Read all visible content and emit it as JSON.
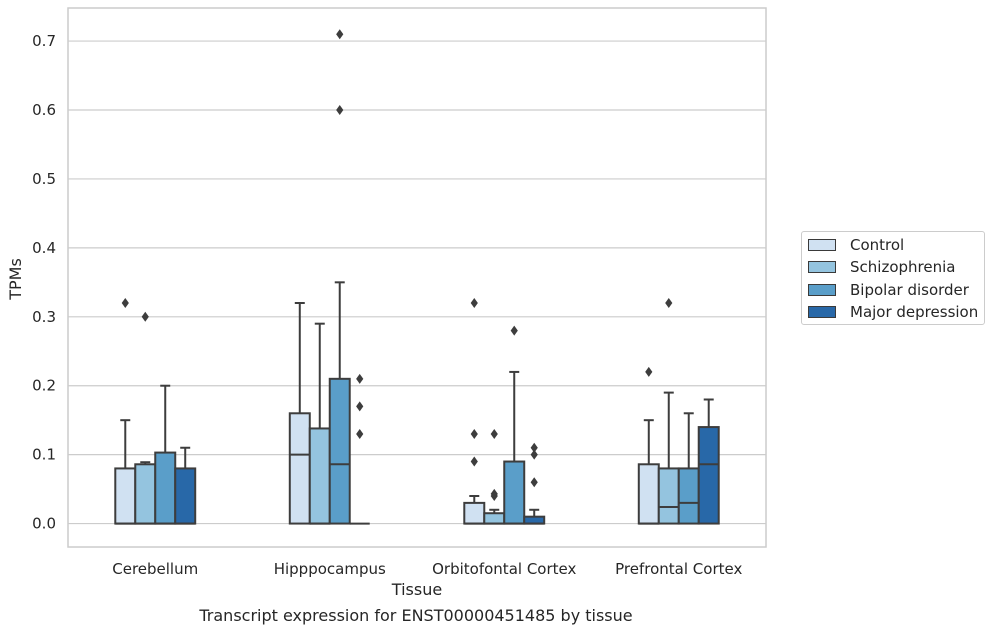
{
  "caption": "Transcript expression for ENST00000451485 by tissue",
  "chart_data": {
    "type": "box",
    "xlabel": "Tissue",
    "ylabel": "TPMs",
    "ylim": [
      -0.034,
      0.748
    ],
    "yticks": [
      0.0,
      0.1,
      0.2,
      0.3,
      0.4,
      0.5,
      0.6,
      0.7
    ],
    "ytick_labels": [
      "0.0",
      "0.1",
      "0.2",
      "0.3",
      "0.4",
      "0.5",
      "0.6",
      "0.7"
    ],
    "grid": "horizontal",
    "legend_position": "right",
    "categories": [
      "Cerebellum",
      "Hipppocampus",
      "Orbitofontal Cortex",
      "Prefrontal Cortex"
    ],
    "series": [
      {
        "name": "Control",
        "color": "#d0e1f2",
        "boxes": [
          {
            "q1": 0.0,
            "median": 0.0,
            "q3": 0.08,
            "whisker_low": 0.0,
            "whisker_high": 0.15,
            "outliers": [
              0.32
            ]
          },
          {
            "q1": 0.0,
            "median": 0.1,
            "q3": 0.16,
            "whisker_low": 0.0,
            "whisker_high": 0.32,
            "outliers": []
          },
          {
            "q1": 0.0,
            "median": 0.0,
            "q3": 0.03,
            "whisker_low": 0.0,
            "whisker_high": 0.04,
            "outliers": [
              0.32,
              0.13,
              0.09
            ]
          },
          {
            "q1": 0.0,
            "median": 0.0,
            "q3": 0.086,
            "whisker_low": 0.0,
            "whisker_high": 0.15,
            "outliers": [
              0.22
            ]
          }
        ]
      },
      {
        "name": "Schizophrenia",
        "color": "#94c4df",
        "boxes": [
          {
            "q1": 0.0,
            "median": 0.0,
            "q3": 0.086,
            "whisker_low": 0.0,
            "whisker_high": 0.089,
            "outliers": [
              0.3
            ]
          },
          {
            "q1": 0.0,
            "median": 0.0,
            "q3": 0.138,
            "whisker_low": 0.0,
            "whisker_high": 0.29,
            "outliers": []
          },
          {
            "q1": 0.0,
            "median": 0.0,
            "q3": 0.015,
            "whisker_low": 0.0,
            "whisker_high": 0.02,
            "outliers": [
              0.13,
              0.043,
              0.04
            ]
          },
          {
            "q1": 0.0,
            "median": 0.024,
            "q3": 0.08,
            "whisker_low": 0.0,
            "whisker_high": 0.19,
            "outliers": [
              0.32
            ]
          }
        ]
      },
      {
        "name": "Bipolar disorder",
        "color": "#5a9ec9",
        "boxes": [
          {
            "q1": 0.0,
            "median": 0.0,
            "q3": 0.103,
            "whisker_low": 0.0,
            "whisker_high": 0.2,
            "outliers": []
          },
          {
            "q1": 0.0,
            "median": 0.086,
            "q3": 0.21,
            "whisker_low": 0.0,
            "whisker_high": 0.35,
            "outliers": [
              0.71,
              0.6
            ]
          },
          {
            "q1": 0.0,
            "median": 0.0,
            "q3": 0.09,
            "whisker_low": 0.0,
            "whisker_high": 0.22,
            "outliers": [
              0.28
            ]
          },
          {
            "q1": 0.0,
            "median": 0.03,
            "q3": 0.08,
            "whisker_low": 0.0,
            "whisker_high": 0.16,
            "outliers": []
          }
        ]
      },
      {
        "name": "Major depression",
        "color": "#2868a8",
        "boxes": [
          {
            "q1": 0.0,
            "median": 0.0,
            "q3": 0.08,
            "whisker_low": 0.0,
            "whisker_high": 0.11,
            "outliers": []
          },
          {
            "q1": 0.0,
            "median": 0.0,
            "q3": 0.0,
            "whisker_low": 0.0,
            "whisker_high": 0.0,
            "outliers": [
              0.21,
              0.17,
              0.13
            ]
          },
          {
            "q1": 0.0,
            "median": 0.0,
            "q3": 0.01,
            "whisker_low": 0.0,
            "whisker_high": 0.02,
            "outliers": [
              0.11,
              0.1,
              0.06
            ]
          },
          {
            "q1": 0.0,
            "median": 0.086,
            "q3": 0.14,
            "whisker_low": 0.0,
            "whisker_high": 0.18,
            "outliers": []
          }
        ]
      }
    ]
  }
}
